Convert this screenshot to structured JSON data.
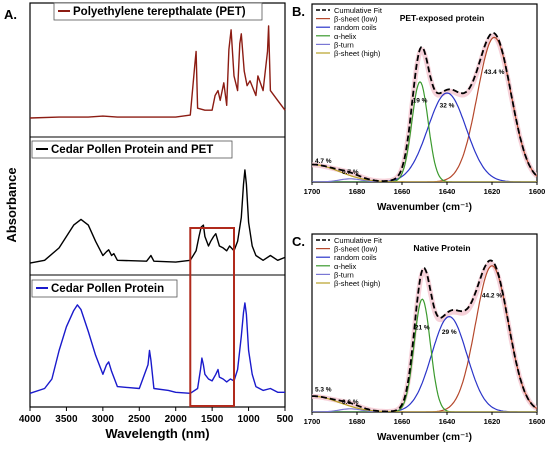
{
  "figure": {
    "panel_a": {
      "letter": "A."
    },
    "panel_b": {
      "letter": "B."
    },
    "panel_c": {
      "letter": "C."
    }
  },
  "chart_data": [
    {
      "panel": "A.",
      "type": "line",
      "xlabel": "Wavelength (nm)",
      "ylabel": "Absorbance",
      "xlim": [
        4000,
        500
      ],
      "x_ticks": [
        4000,
        3500,
        3000,
        2500,
        2000,
        1500,
        1000,
        500
      ],
      "highlight_box": [
        1800,
        1200
      ],
      "series": [
        {
          "name": "Polyethylene terepthalate (PET)",
          "color": "#8c1c13",
          "x": [
            4000,
            3600,
            3200,
            3000,
            2800,
            2400,
            2000,
            1800,
            1740,
            1720,
            1700,
            1600,
            1500,
            1460,
            1420,
            1390,
            1340,
            1300,
            1270,
            1240,
            1200,
            1150,
            1120,
            1100,
            1060,
            1020,
            980,
            900,
            872,
            800,
            740,
            725,
            700,
            600,
            500
          ],
          "y": [
            0.02,
            0.03,
            0.03,
            0.04,
            0.03,
            0.03,
            0.03,
            0.05,
            0.55,
            0.7,
            0.12,
            0.1,
            0.1,
            0.25,
            0.3,
            0.2,
            0.38,
            0.15,
            0.72,
            0.92,
            0.45,
            0.3,
            0.78,
            0.88,
            0.5,
            0.35,
            0.4,
            0.25,
            0.45,
            0.3,
            0.7,
            0.96,
            0.3,
            0.2,
            0.1
          ]
        },
        {
          "name": "Cedar Pollen Protein and PET",
          "color": "#000000",
          "x": [
            4000,
            3800,
            3600,
            3500,
            3400,
            3300,
            3200,
            3100,
            3000,
            2950,
            2920,
            2880,
            2850,
            2800,
            2400,
            2360,
            2340,
            2300,
            2000,
            1800,
            1720,
            1680,
            1650,
            1620,
            1600,
            1550,
            1520,
            1480,
            1450,
            1420,
            1400,
            1350,
            1300,
            1260,
            1200,
            1150,
            1100,
            1070,
            1050,
            1030,
            1000,
            950,
            900,
            800,
            700,
            600,
            500
          ],
          "y": [
            0.02,
            0.05,
            0.18,
            0.3,
            0.42,
            0.48,
            0.42,
            0.25,
            0.1,
            0.14,
            0.16,
            0.1,
            0.12,
            0.05,
            0.04,
            0.08,
            0.1,
            0.04,
            0.03,
            0.05,
            0.15,
            0.3,
            0.4,
            0.42,
            0.3,
            0.2,
            0.25,
            0.3,
            0.33,
            0.25,
            0.2,
            0.18,
            0.15,
            0.2,
            0.15,
            0.25,
            0.5,
            0.85,
            1.0,
            0.85,
            0.45,
            0.2,
            0.1,
            0.05,
            0.1,
            0.05,
            0.08
          ]
        },
        {
          "name": "Cedar Pollen Protein",
          "color": "#1a1acc",
          "x": [
            4000,
            3800,
            3700,
            3600,
            3500,
            3400,
            3350,
            3300,
            3200,
            3100,
            3000,
            2950,
            2920,
            2880,
            2800,
            2500,
            2380,
            2360,
            2340,
            2300,
            2100,
            2000,
            1800,
            1700,
            1660,
            1640,
            1620,
            1600,
            1550,
            1500,
            1450,
            1420,
            1400,
            1350,
            1300,
            1250,
            1200,
            1150,
            1100,
            1070,
            1050,
            1030,
            1000,
            950,
            900,
            800,
            700,
            600,
            500
          ],
          "y": [
            0.05,
            0.1,
            0.2,
            0.5,
            0.75,
            0.92,
            0.98,
            0.93,
            0.7,
            0.45,
            0.25,
            0.35,
            0.38,
            0.28,
            0.12,
            0.1,
            0.35,
            0.5,
            0.4,
            0.1,
            0.08,
            0.06,
            0.05,
            0.1,
            0.3,
            0.42,
            0.35,
            0.25,
            0.2,
            0.18,
            0.25,
            0.3,
            0.22,
            0.2,
            0.17,
            0.2,
            0.18,
            0.3,
            0.65,
            0.9,
            1.0,
            0.88,
            0.5,
            0.25,
            0.12,
            0.08,
            0.1,
            0.06,
            0.06
          ]
        }
      ]
    },
    {
      "panel": "B.",
      "type": "line",
      "title": "PET-exposed protein",
      "xlabel": "Wavenumber (cm⁻¹)",
      "xlim": [
        1700,
        1600
      ],
      "x_ticks": [
        1700,
        1680,
        1660,
        1640,
        1620,
        1600
      ],
      "ylim": [
        0,
        1.12
      ],
      "legend": "top-left",
      "components": [
        {
          "name": "β-sheet (low)",
          "color": "#b5482c",
          "center": 1619,
          "height": 0.91,
          "width": 7.5,
          "label": "43.4 %",
          "label_x": 1619,
          "label_y": 0.68
        },
        {
          "name": "random coils",
          "color": "#2b35c9",
          "center": 1640,
          "height": 0.56,
          "width": 8.5,
          "label": "32 %",
          "label_x": 1640,
          "label_y": 0.47
        },
        {
          "name": "α-helix",
          "color": "#3b9a2e",
          "center": 1652,
          "height": 0.63,
          "width": 3.6,
          "label": "19 %",
          "label_x": 1652,
          "label_y": 0.5
        },
        {
          "name": "β-turn",
          "color": "#7a77d4",
          "center": 1683,
          "height": 0.02,
          "width": 5,
          "label": "0.7 %",
          "label_x": 1683,
          "label_y": 0.05
        },
        {
          "name": "β-sheet (high)",
          "color": "#b8a128",
          "center": 1700,
          "height": 0.11,
          "width": 12,
          "label": "4.7 %",
          "label_x": 1695,
          "label_y": 0.12
        }
      ],
      "cumulative_fit": {
        "name": "Cumulative Fit",
        "color": "#000000",
        "style": "dashed"
      }
    },
    {
      "panel": "C.",
      "type": "line",
      "title": "Native Protein",
      "xlabel": "Wavenumber (cm⁻¹)",
      "xlim": [
        1700,
        1600
      ],
      "x_ticks": [
        1700,
        1680,
        1660,
        1640,
        1620,
        1600
      ],
      "ylim": [
        0,
        1.12
      ],
      "legend": "top-left",
      "components": [
        {
          "name": "β-sheet (low)",
          "color": "#b5482c",
          "center": 1620,
          "height": 0.92,
          "width": 7.3,
          "label": "44.2 %",
          "label_x": 1620,
          "label_y": 0.72
        },
        {
          "name": "random coils",
          "color": "#2b35c9",
          "center": 1639,
          "height": 0.6,
          "width": 7.8,
          "label": "29 %",
          "label_x": 1639,
          "label_y": 0.49
        },
        {
          "name": "α-helix",
          "color": "#3b9a2e",
          "center": 1651,
          "height": 0.71,
          "width": 3.6,
          "label": "21 %",
          "label_x": 1651,
          "label_y": 0.52
        },
        {
          "name": "β-turn",
          "color": "#7a77d4",
          "center": 1683,
          "height": 0.02,
          "width": 5,
          "label": "0.6 %",
          "label_x": 1683,
          "label_y": 0.05
        },
        {
          "name": "β-sheet (high)",
          "color": "#b8a128",
          "center": 1700,
          "height": 0.1,
          "width": 12,
          "label": "5.3 %",
          "label_x": 1695,
          "label_y": 0.13
        }
      ],
      "cumulative_fit": {
        "name": "Cumulative Fit",
        "color": "#000000",
        "style": "dashed"
      }
    }
  ]
}
